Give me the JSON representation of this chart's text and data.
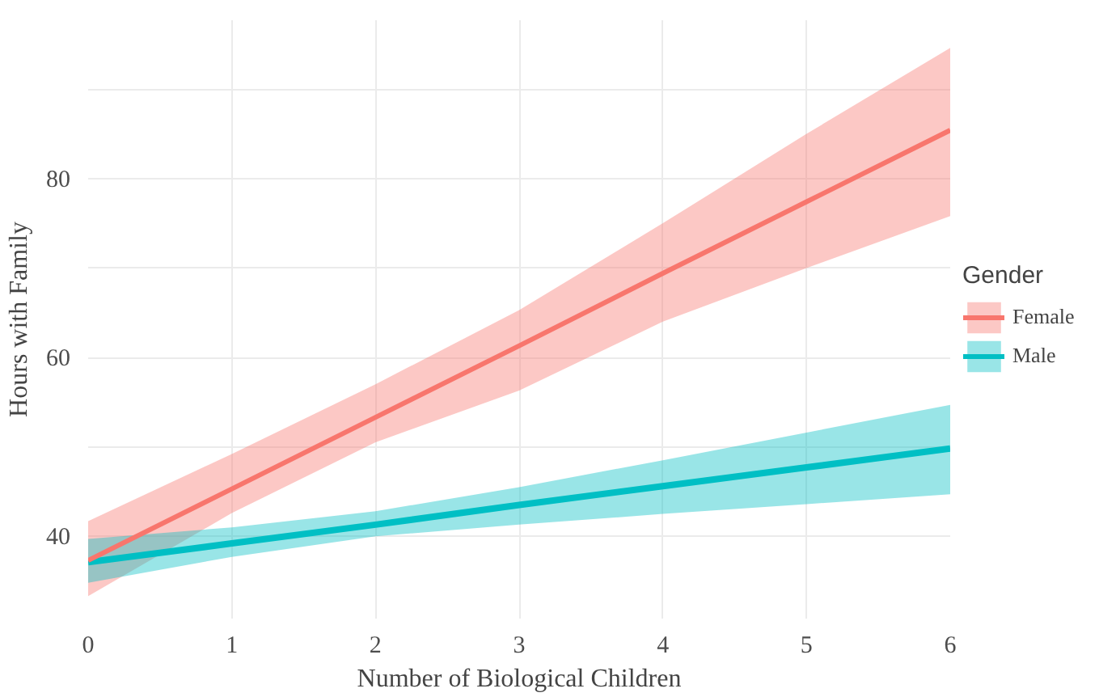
{
  "chart_data": {
    "type": "line",
    "xlabel": "Number of Biological Children",
    "ylabel": "Hours with Family",
    "legend_title": "Gender",
    "legend": "right",
    "grid": true,
    "x": [
      0,
      1,
      2,
      3,
      4,
      5,
      6
    ],
    "series": [
      {
        "name": "Female",
        "color": "#f8766d",
        "values": [
          37.3,
          45.3,
          53.3,
          61.3,
          69.4,
          77.4,
          85.4
        ],
        "lower": [
          33.3,
          42.6,
          50.5,
          56.3,
          64,
          70,
          75.8
        ],
        "upper": [
          41.7,
          49.2,
          57,
          65.3,
          75,
          85,
          94.6
        ]
      },
      {
        "name": "Male",
        "color": "#00bfc4",
        "values": [
          37.1,
          39.2,
          41.3,
          43.5,
          45.6,
          47.7,
          49.8
        ],
        "lower": [
          34.8,
          37.7,
          40,
          41.3,
          42.5,
          43.6,
          44.7
        ],
        "upper": [
          39.7,
          41,
          42.8,
          45.5,
          48.5,
          51.6,
          54.7
        ]
      }
    ],
    "xlim": [
      0,
      6
    ],
    "ylim": [
      30.8,
      97.7
    ],
    "xticks": [
      0,
      1,
      2,
      3,
      4,
      5,
      6
    ],
    "yticks": [
      40,
      {
        "value": 50,
        "label": null
      },
      60,
      {
        "value": 70,
        "label": null
      },
      80,
      {
        "value": 90,
        "label": null
      }
    ]
  }
}
